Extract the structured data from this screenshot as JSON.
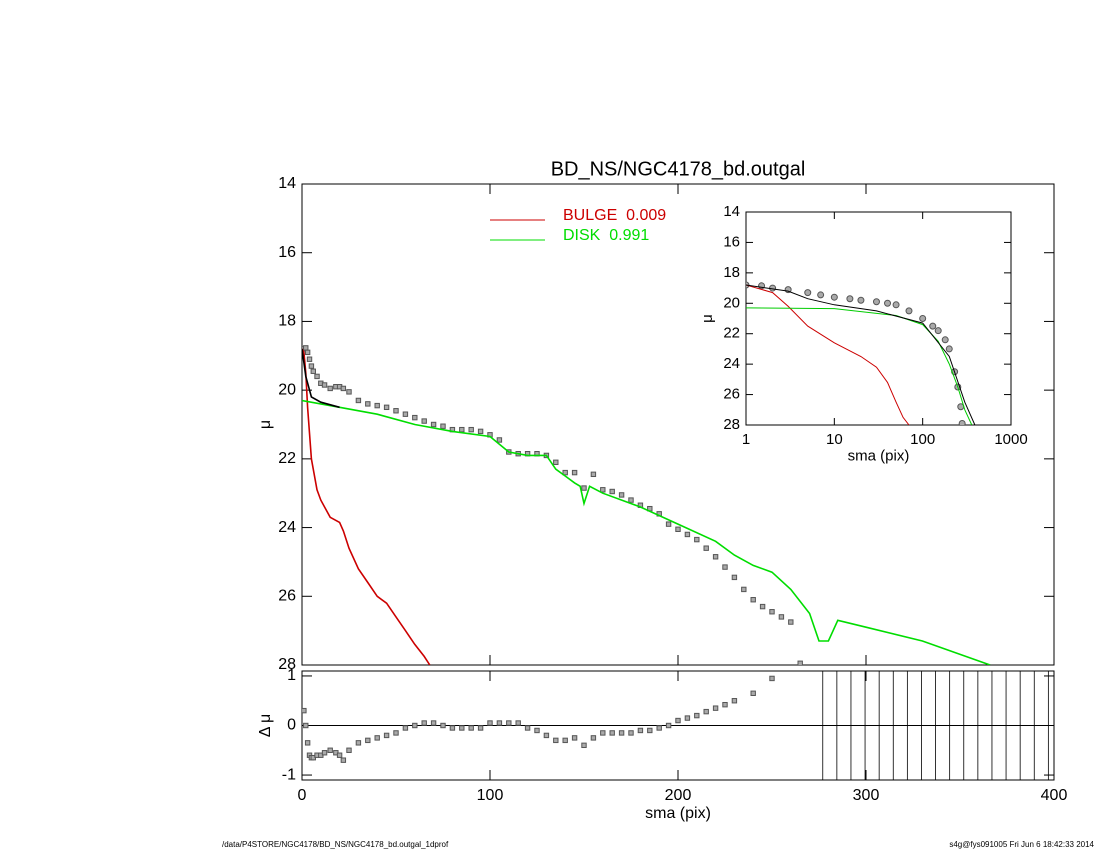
{
  "chart_data": [
    {
      "type": "line",
      "title": "BD_NS/NGC4178_bd.outgal",
      "ylabel": "μ",
      "xlim": [
        0,
        400
      ],
      "xticks": [
        0,
        100,
        200,
        300,
        400
      ],
      "show_xtick_labels": false,
      "ylim": [
        28,
        14
      ],
      "yticks": [
        14,
        16,
        18,
        20,
        22,
        24,
        26,
        28
      ],
      "series": [
        {
          "marker": "square",
          "color": "#555555",
          "x": [
            1,
            2,
            3,
            4,
            5,
            6,
            8,
            10,
            12,
            15,
            18,
            20,
            22,
            25,
            30,
            35,
            40,
            45,
            50,
            55,
            60,
            65,
            70,
            75,
            80,
            85,
            90,
            95,
            100,
            105,
            110,
            115,
            120,
            125,
            130,
            135,
            140,
            145,
            150,
            155,
            160,
            165,
            170,
            175,
            180,
            185,
            190,
            195,
            200,
            205,
            210,
            215,
            220,
            225,
            230,
            235,
            240,
            245,
            250,
            255,
            260,
            265
          ],
          "values": [
            18.8,
            18.77,
            18.9,
            19.1,
            19.3,
            19.45,
            19.6,
            19.8,
            19.85,
            19.95,
            19.9,
            19.9,
            19.95,
            20.05,
            20.3,
            20.4,
            20.45,
            20.5,
            20.6,
            20.7,
            20.8,
            20.9,
            21.0,
            21.05,
            21.15,
            21.15,
            21.15,
            21.2,
            21.3,
            21.45,
            21.8,
            21.85,
            21.85,
            21.85,
            21.9,
            22.1,
            22.4,
            22.4,
            22.85,
            22.45,
            22.9,
            22.95,
            23.05,
            23.2,
            23.35,
            23.45,
            23.6,
            23.9,
            24.05,
            24.2,
            24.35,
            24.6,
            24.85,
            25.15,
            25.45,
            25.8,
            26.1,
            26.3,
            26.45,
            26.6,
            26.75,
            27.95
          ]
        },
        {
          "name": "BULGE  0.009",
          "color": "#cc0000",
          "x": [
            0,
            1,
            2,
            3,
            5,
            8,
            10,
            15,
            20,
            22,
            25,
            30,
            35,
            40,
            45,
            50,
            55,
            60,
            65,
            68
          ],
          "values": [
            18.8,
            18.9,
            19.5,
            20.5,
            22.0,
            22.9,
            23.2,
            23.7,
            23.85,
            24.1,
            24.6,
            25.2,
            25.6,
            26.0,
            26.2,
            26.6,
            27.0,
            27.4,
            27.75,
            28.0
          ]
        },
        {
          "name": "DISK  0.991",
          "color": "#00dd00",
          "x": [
            0,
            20,
            40,
            60,
            80,
            100,
            110,
            120,
            130,
            135,
            140,
            145,
            148,
            150,
            153,
            160,
            180,
            200,
            220,
            230,
            240,
            250,
            260,
            270,
            275,
            280,
            285,
            300,
            330,
            366
          ],
          "values": [
            20.3,
            20.5,
            20.7,
            21.0,
            21.2,
            21.35,
            21.8,
            21.9,
            21.9,
            22.3,
            22.5,
            22.7,
            22.8,
            23.3,
            22.8,
            23.0,
            23.4,
            23.9,
            24.4,
            24.8,
            25.1,
            25.3,
            25.8,
            26.5,
            27.3,
            27.3,
            26.7,
            26.9,
            27.3,
            28.0
          ]
        },
        {
          "color": "#000000",
          "x": [
            0,
            2,
            5,
            10,
            20
          ],
          "values": [
            18.8,
            19.6,
            20.2,
            20.35,
            20.5
          ]
        }
      ]
    },
    {
      "type": "scatter",
      "ylabel": "Δ μ",
      "xlabel": "sma (pix)",
      "xlim": [
        0,
        400
      ],
      "xticks": [
        0,
        100,
        200,
        300,
        400
      ],
      "show_xtick_labels": true,
      "ylim": [
        -1.1,
        1.1
      ],
      "yticks": [
        -1,
        0,
        1
      ],
      "hline": 0,
      "vlines": [
        277,
        284.5,
        292,
        299.5,
        307,
        314.5,
        322,
        329.5,
        337,
        344.5,
        352,
        359.5,
        367,
        374.5,
        382,
        389.5,
        397
      ],
      "series": [
        {
          "marker": "square",
          "color": "#555555",
          "x": [
            1,
            2,
            3,
            4,
            5,
            6,
            8,
            10,
            12,
            15,
            18,
            20,
            22,
            25,
            30,
            35,
            40,
            45,
            50,
            55,
            60,
            65,
            70,
            75,
            80,
            85,
            90,
            95,
            100,
            105,
            110,
            115,
            120,
            125,
            130,
            135,
            140,
            145,
            150,
            155,
            160,
            165,
            170,
            175,
            180,
            185,
            190,
            195,
            200,
            205,
            210,
            215,
            220,
            225,
            230,
            240,
            250
          ],
          "values": [
            0.3,
            0.0,
            -0.35,
            -0.6,
            -0.65,
            -0.65,
            -0.6,
            -0.6,
            -0.55,
            -0.5,
            -0.55,
            -0.6,
            -0.7,
            -0.5,
            -0.35,
            -0.3,
            -0.25,
            -0.2,
            -0.15,
            -0.05,
            0.0,
            0.05,
            0.05,
            0.0,
            -0.05,
            -0.05,
            -0.05,
            -0.05,
            0.05,
            0.05,
            0.05,
            0.05,
            -0.05,
            -0.1,
            -0.2,
            -0.3,
            -0.3,
            -0.25,
            -0.4,
            -0.25,
            -0.15,
            -0.15,
            -0.15,
            -0.15,
            -0.1,
            -0.1,
            -0.05,
            0.0,
            0.1,
            0.15,
            0.2,
            0.28,
            0.35,
            0.42,
            0.5,
            0.65,
            0.95
          ]
        }
      ]
    },
    {
      "type": "line",
      "ylabel": "μ",
      "xlabel": "sma (pix)",
      "log_x": true,
      "xlim": [
        1,
        1000
      ],
      "xticks": [
        1,
        10,
        100,
        1000
      ],
      "show_xtick_labels": true,
      "ylim": [
        28,
        14
      ],
      "yticks": [
        14,
        16,
        18,
        20,
        22,
        24,
        26,
        28
      ],
      "series": [
        {
          "marker": "circle",
          "color": "#555555",
          "x": [
            1,
            1.5,
            2,
            3,
            5,
            7,
            10,
            15,
            20,
            30,
            40,
            50,
            70,
            100,
            130,
            150,
            180,
            200,
            230,
            250,
            270,
            280
          ],
          "values": [
            18.8,
            18.85,
            19.0,
            19.1,
            19.3,
            19.45,
            19.6,
            19.7,
            19.8,
            19.9,
            20.0,
            20.1,
            20.5,
            21.0,
            21.5,
            21.8,
            22.4,
            23.0,
            24.5,
            25.5,
            26.8,
            27.9
          ]
        },
        {
          "color": "#cc0000",
          "x": [
            1,
            2,
            3,
            5,
            10,
            20,
            30,
            40,
            50,
            60,
            70
          ],
          "values": [
            18.8,
            19.3,
            20.2,
            21.5,
            22.6,
            23.5,
            24.2,
            25.2,
            26.5,
            27.5,
            28.0
          ]
        },
        {
          "color": "#00cc00",
          "x": [
            1,
            10,
            50,
            100,
            150,
            200,
            250,
            300,
            360
          ],
          "values": [
            20.3,
            20.35,
            20.8,
            21.4,
            22.5,
            24.0,
            25.5,
            27.0,
            28.0
          ]
        },
        {
          "color": "#000000",
          "x": [
            1,
            3,
            5,
            10,
            30,
            100,
            200,
            300,
            390
          ],
          "values": [
            18.8,
            19.2,
            19.7,
            20.1,
            20.5,
            21.3,
            23.5,
            26.5,
            28.0
          ]
        }
      ]
    }
  ],
  "footer": {
    "left": "/data/P4STORE/NGC4178/BD_NS/NGC4178_bd.outgal_1dprof",
    "right": "s4g@fys091005  Fri Jun  6 18:42:33 2014"
  }
}
